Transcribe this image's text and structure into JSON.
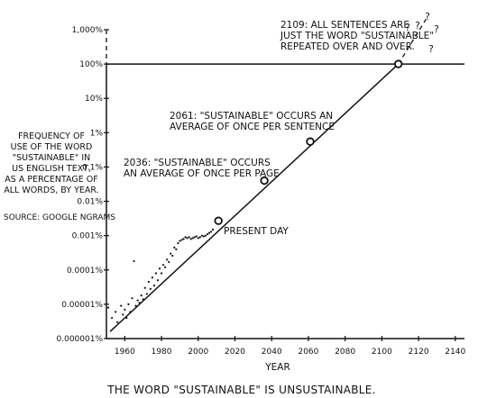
{
  "chart_data": {
    "type": "scatter",
    "title": "",
    "caption": "THE WORD \"SUSTAINABLE\" IS UNSUSTAINABLE.",
    "xlabel": "YEAR",
    "ylabel_lines": [
      "FREQUENCY OF",
      "USE OF THE WORD",
      "\"SUSTAINABLE\" IN",
      "US ENGLISH TEXT,",
      "AS A PERCENTAGE OF",
      "ALL WORDS, BY YEAR."
    ],
    "source": "SOURCE: GOOGLE NGRAMS",
    "y_scale": "log",
    "xlim": [
      1950,
      2145
    ],
    "ylim_percent": [
      1e-06,
      1000
    ],
    "x_ticks": [
      1960,
      1980,
      2000,
      2020,
      2040,
      2060,
      2080,
      2100,
      2120,
      2140
    ],
    "y_ticks": [
      {
        "value": 1000,
        "label": "1,000%"
      },
      {
        "value": 100,
        "label": "100%"
      },
      {
        "value": 10,
        "label": "10%"
      },
      {
        "value": 1,
        "label": "1%"
      },
      {
        "value": 0.1,
        "label": "0.1%"
      },
      {
        "value": 0.01,
        "label": "0.01%"
      },
      {
        "value": 0.001,
        "label": "0.001%"
      },
      {
        "value": 0.0001,
        "label": "0.0001%"
      },
      {
        "value": 1e-05,
        "label": "0.00001%"
      },
      {
        "value": 1e-06,
        "label": "0.000001%"
      }
    ],
    "reference_line": {
      "value": 100,
      "label": "100%"
    },
    "trend_line": {
      "solid": [
        [
          1952,
          1.6e-06
        ],
        [
          2109,
          100
        ]
      ],
      "dashed": [
        [
          2109,
          100
        ],
        [
          2124,
          2000
        ]
      ]
    },
    "observed_points": [
      {
        "x": 1951,
        "y": 8e-06
      },
      {
        "x": 1953,
        "y": 4e-06
      },
      {
        "x": 1955,
        "y": 6e-06
      },
      {
        "x": 1956,
        "y": 3e-06
      },
      {
        "x": 1958,
        "y": 9e-06
      },
      {
        "x": 1959,
        "y": 5e-06
      },
      {
        "x": 1960,
        "y": 7e-06
      },
      {
        "x": 1961,
        "y": 4e-06
      },
      {
        "x": 1962,
        "y": 1e-05
      },
      {
        "x": 1963,
        "y": 6e-06
      },
      {
        "x": 1964,
        "y": 1.5e-05
      },
      {
        "x": 1965,
        "y": 0.00018
      },
      {
        "x": 1966,
        "y": 9e-06
      },
      {
        "x": 1967,
        "y": 1.3e-05
      },
      {
        "x": 1968,
        "y": 1.1e-05
      },
      {
        "x": 1969,
        "y": 1.8e-05
      },
      {
        "x": 1970,
        "y": 1.4e-05
      },
      {
        "x": 1971,
        "y": 3e-05
      },
      {
        "x": 1972,
        "y": 2e-05
      },
      {
        "x": 1973,
        "y": 4.5e-05
      },
      {
        "x": 1974,
        "y": 2.8e-05
      },
      {
        "x": 1975,
        "y": 6e-05
      },
      {
        "x": 1976,
        "y": 3.5e-05
      },
      {
        "x": 1977,
        "y": 8e-05
      },
      {
        "x": 1978,
        "y": 5e-05
      },
      {
        "x": 1979,
        "y": 0.00011
      },
      {
        "x": 1980,
        "y": 8e-05
      },
      {
        "x": 1981,
        "y": 0.00014
      },
      {
        "x": 1982,
        "y": 0.00012
      },
      {
        "x": 1983,
        "y": 0.0002
      },
      {
        "x": 1984,
        "y": 0.00017
      },
      {
        "x": 1985,
        "y": 0.0003
      },
      {
        "x": 1986,
        "y": 0.00026
      },
      {
        "x": 1987,
        "y": 0.00045
      },
      {
        "x": 1988,
        "y": 0.0004
      },
      {
        "x": 1989,
        "y": 0.0006
      },
      {
        "x": 1990,
        "y": 0.0007
      },
      {
        "x": 1991,
        "y": 0.00075
      },
      {
        "x": 1992,
        "y": 0.0008
      },
      {
        "x": 1993,
        "y": 0.0009
      },
      {
        "x": 1994,
        "y": 0.00085
      },
      {
        "x": 1995,
        "y": 0.0009
      },
      {
        "x": 1996,
        "y": 0.0008
      },
      {
        "x": 1997,
        "y": 0.00085
      },
      {
        "x": 1998,
        "y": 0.0009
      },
      {
        "x": 1999,
        "y": 0.00095
      },
      {
        "x": 2000,
        "y": 0.00085
      },
      {
        "x": 2001,
        "y": 0.0009
      },
      {
        "x": 2002,
        "y": 0.001
      },
      {
        "x": 2003,
        "y": 0.00095
      },
      {
        "x": 2004,
        "y": 0.001
      },
      {
        "x": 2005,
        "y": 0.0011
      },
      {
        "x": 2006,
        "y": 0.0012
      },
      {
        "x": 2007,
        "y": 0.0013
      },
      {
        "x": 2008,
        "y": 0.0015
      }
    ],
    "milestones": [
      {
        "x": 2011,
        "y": 0.0027,
        "label_lines": [
          "PRESENT DAY"
        ]
      },
      {
        "x": 2036,
        "y": 0.04,
        "label_lines": [
          "2036: \"SUSTAINABLE\" OCCURS",
          "AN AVERAGE OF ONCE PER PAGE"
        ]
      },
      {
        "x": 2061,
        "y": 0.55,
        "label_lines": [
          "2061: \"SUSTAINABLE\" OCCURS AN",
          "AVERAGE OF ONCE PER SENTENCE"
        ]
      },
      {
        "x": 2109,
        "y": 100,
        "label_lines": [
          "2109: ALL SENTENCES ARE",
          "JUST THE WORD \"SUSTAINABLE\"",
          "REPEATED OVER AND OVER."
        ]
      }
    ],
    "question_marks": [
      "?",
      "?",
      "?",
      "?",
      "?"
    ],
    "grid": false
  }
}
